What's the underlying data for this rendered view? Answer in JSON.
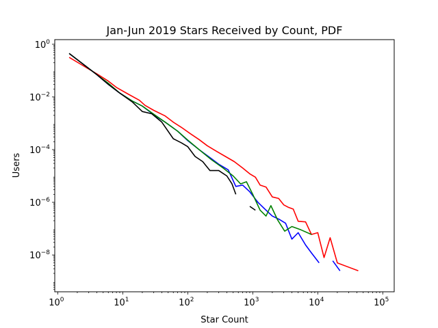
{
  "chart_data": {
    "type": "line",
    "title": "Jan-Jun 2019 Stars Received by Count, PDF",
    "xlabel": "Star Count",
    "ylabel": "Users",
    "xscale": "log",
    "yscale": "log",
    "xlim": [
      0.9,
      150000
    ],
    "ylim": [
      4e-10,
      1.5
    ],
    "grid": false,
    "legend": "none",
    "xticks": [
      {
        "value": 1,
        "base": "10",
        "exp": "0"
      },
      {
        "value": 10,
        "base": "10",
        "exp": "1"
      },
      {
        "value": 100,
        "base": "10",
        "exp": "2"
      },
      {
        "value": 1000,
        "base": "10",
        "exp": "3"
      },
      {
        "value": 10000,
        "base": "10",
        "exp": "4"
      },
      {
        "value": 100000,
        "base": "10",
        "exp": "5"
      }
    ],
    "yticks": [
      {
        "value": 1e-08,
        "base": "10",
        "exp": "−8"
      },
      {
        "value": 1e-06,
        "base": "10",
        "exp": "−6"
      },
      {
        "value": 0.0001,
        "base": "10",
        "exp": "−4"
      },
      {
        "value": 0.01,
        "base": "10",
        "exp": "−2"
      },
      {
        "value": 1,
        "base": "10",
        "exp": "0"
      }
    ],
    "series": [
      {
        "color": "#ff0000",
        "points": [
          [
            1.5,
            0.32
          ],
          [
            2.5,
            0.15
          ],
          [
            4,
            0.075
          ],
          [
            6,
            0.04
          ],
          [
            8,
            0.023
          ],
          [
            12,
            0.013
          ],
          [
            18,
            0.0075
          ],
          [
            22,
            0.0048
          ],
          [
            30,
            0.0031
          ],
          [
            45,
            0.0019
          ],
          [
            60,
            0.0011
          ],
          [
            80,
            0.0007
          ],
          [
            110,
            0.0004
          ],
          [
            150,
            0.00024
          ],
          [
            200,
            0.00014
          ],
          [
            280,
            8.5e-05
          ],
          [
            380,
            5.5e-05
          ],
          [
            520,
            3.5e-05
          ],
          [
            700,
            2e-05
          ],
          [
            900,
            1.2e-05
          ],
          [
            1100,
            9e-06
          ],
          [
            1300,
            4.5e-06
          ],
          [
            1600,
            3.8e-06
          ],
          [
            2000,
            1.6e-06
          ],
          [
            2500,
            1.4e-06
          ],
          [
            3000,
            8e-07
          ],
          [
            3500,
            6.5e-07
          ],
          [
            4200,
            5.5e-07
          ],
          [
            5000,
            1.9e-07
          ],
          [
            6500,
            1.8e-07
          ],
          [
            8000,
            6e-08
          ],
          [
            10000,
            7e-08
          ],
          [
            12500,
            8e-09
          ],
          [
            15500,
            4.5e-08
          ],
          [
            20000,
            5e-09
          ],
          [
            42000,
            2.5e-09
          ]
        ]
      },
      {
        "color": "#0000ff",
        "points": [
          [
            1.5,
            0.45
          ],
          [
            2.5,
            0.17
          ],
          [
            4,
            0.07
          ],
          [
            6,
            0.03
          ],
          [
            9,
            0.014
          ],
          [
            14,
            0.007
          ],
          [
            20,
            0.0045
          ],
          [
            30,
            0.0021
          ],
          [
            45,
            0.0011
          ],
          [
            70,
            0.0005
          ],
          [
            100,
            0.00022
          ],
          [
            150,
            0.0001
          ],
          [
            220,
            5e-05
          ],
          [
            300,
            2.8e-05
          ],
          [
            420,
            1.7e-05
          ],
          [
            550,
            4e-06
          ],
          [
            700,
            4.5e-06
          ],
          [
            900,
            2.5e-06
          ],
          [
            1200,
            1e-06
          ],
          [
            1600,
            5e-07
          ],
          [
            2000,
            3e-07
          ],
          [
            2600,
            2.2e-07
          ],
          [
            3200,
            1.6e-07
          ],
          [
            4000,
            4e-08
          ],
          [
            5000,
            7e-08
          ],
          [
            6500,
            2.4e-08
          ],
          [
            8000,
            1.2e-08
          ],
          [
            10500,
            5e-09
          ],
          null,
          [
            17000,
            6e-09
          ],
          [
            22000,
            2.5e-09
          ]
        ]
      },
      {
        "color": "#008000",
        "points": [
          [
            1.5,
            0.45
          ],
          [
            2.5,
            0.17
          ],
          [
            4,
            0.07
          ],
          [
            6,
            0.033
          ],
          [
            9,
            0.014
          ],
          [
            14,
            0.007
          ],
          [
            20,
            0.0045
          ],
          [
            30,
            0.0022
          ],
          [
            45,
            0.0011
          ],
          [
            70,
            0.0005
          ],
          [
            100,
            0.00023
          ],
          [
            150,
            0.0001
          ],
          [
            230,
            4.2e-05
          ],
          [
            350,
            2e-05
          ],
          [
            500,
            1e-05
          ],
          [
            650,
            5e-06
          ],
          [
            800,
            6e-06
          ],
          [
            1000,
            2e-06
          ],
          [
            1300,
            5e-07
          ],
          [
            1600,
            3e-07
          ],
          [
            1900,
            7.5e-07
          ],
          [
            2400,
            2.2e-07
          ],
          [
            3100,
            8e-08
          ],
          [
            4000,
            1.2e-07
          ],
          [
            5500,
            9e-08
          ],
          [
            8000,
            6e-08
          ]
        ]
      },
      {
        "color": "#000000",
        "points": [
          [
            1.5,
            0.45
          ],
          [
            2.5,
            0.17
          ],
          [
            4,
            0.07
          ],
          [
            6,
            0.03
          ],
          [
            9,
            0.014
          ],
          [
            14,
            0.0065
          ],
          [
            20,
            0.0028
          ],
          [
            28,
            0.0023
          ],
          [
            40,
            0.0011
          ],
          [
            60,
            0.00026
          ],
          [
            80,
            0.00018
          ],
          [
            100,
            0.00013
          ],
          [
            130,
            5.5e-05
          ],
          [
            170,
            3.5e-05
          ],
          [
            220,
            1.6e-05
          ],
          [
            300,
            1.6e-05
          ],
          [
            400,
            1e-05
          ],
          [
            480,
            5e-06
          ],
          [
            550,
            2e-06
          ],
          null,
          [
            900,
            7e-07
          ],
          [
            1100,
            5e-07
          ]
        ]
      }
    ]
  }
}
